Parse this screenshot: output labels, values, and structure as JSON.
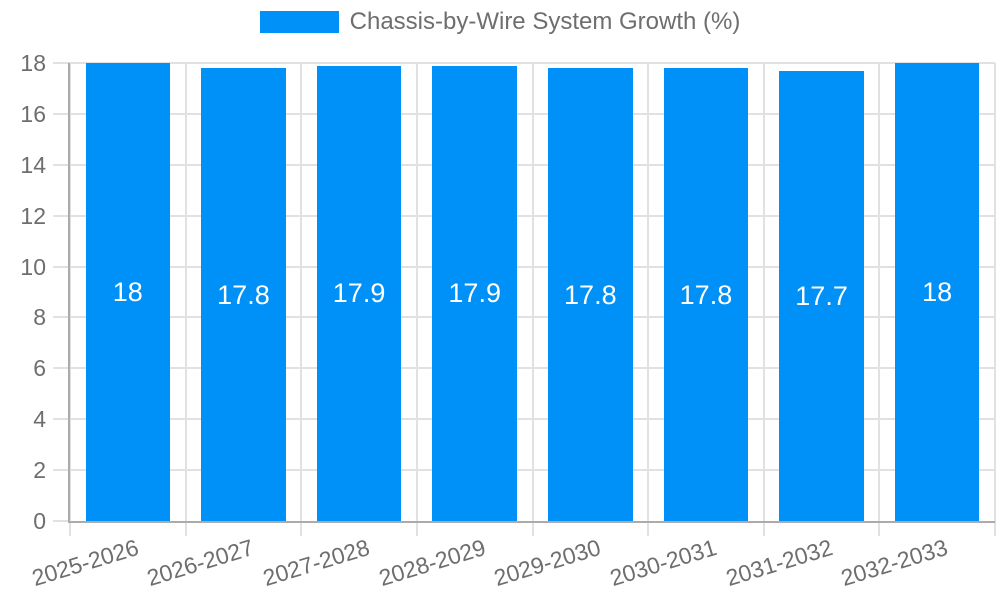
{
  "chart_data": {
    "type": "bar",
    "title": "",
    "legend": {
      "label": "Chassis-by-Wire System Growth (%)",
      "position": "top"
    },
    "categories": [
      "2025-2026",
      "2026-2027",
      "2027-2028",
      "2028-2029",
      "2029-2030",
      "2030-2031",
      "2031-2032",
      "2032-2033"
    ],
    "values": [
      18,
      17.8,
      17.9,
      17.9,
      17.8,
      17.8,
      17.7,
      18
    ],
    "value_labels": [
      "18",
      "17.8",
      "17.9",
      "17.9",
      "17.8",
      "17.8",
      "17.7",
      "18"
    ],
    "xlabel": "",
    "ylabel": "",
    "ylim": [
      0,
      18
    ],
    "yticks": [
      0,
      2,
      4,
      6,
      8,
      10,
      12,
      14,
      16,
      18
    ],
    "grid": true,
    "colors": {
      "bar": "#0091f8",
      "grid": "#e1e1e1",
      "axis": "#ababab",
      "tick_text": "#6e6e6e",
      "bar_label": "#ffffff",
      "background": "#ffffff"
    }
  }
}
